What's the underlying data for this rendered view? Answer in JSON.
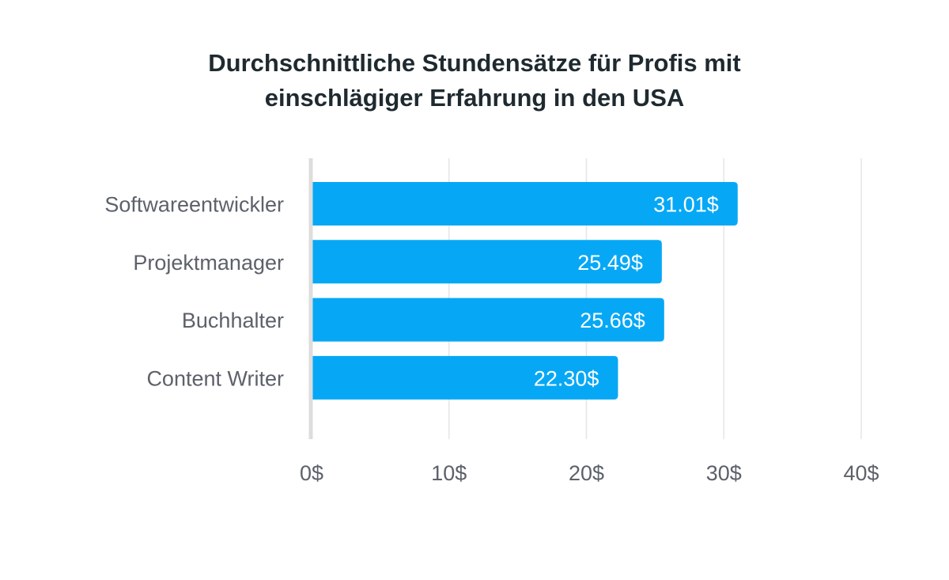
{
  "chart_data": {
    "type": "bar",
    "orientation": "horizontal",
    "title_lines": [
      "Durchschnittliche Stundensätze für Profis mit",
      "einschlägiger Erfahrung in den USA"
    ],
    "categories": [
      "Softwareentwickler",
      "Projektmanager",
      "Buchhalter",
      "Content Writer"
    ],
    "values": [
      31.01,
      25.49,
      25.66,
      22.3
    ],
    "value_labels": [
      "31.01$",
      "25.49$",
      "25.66$",
      "22.30$"
    ],
    "xlim": [
      0,
      40
    ],
    "x_ticks": [
      0,
      10,
      20,
      30,
      40
    ],
    "x_tick_labels": [
      "0$",
      "10$",
      "20$",
      "30$",
      "40$"
    ],
    "grid": true,
    "colors": {
      "bar": "#06a8f5",
      "grid": "#e6e6e6",
      "axis": "#dddddd"
    }
  }
}
